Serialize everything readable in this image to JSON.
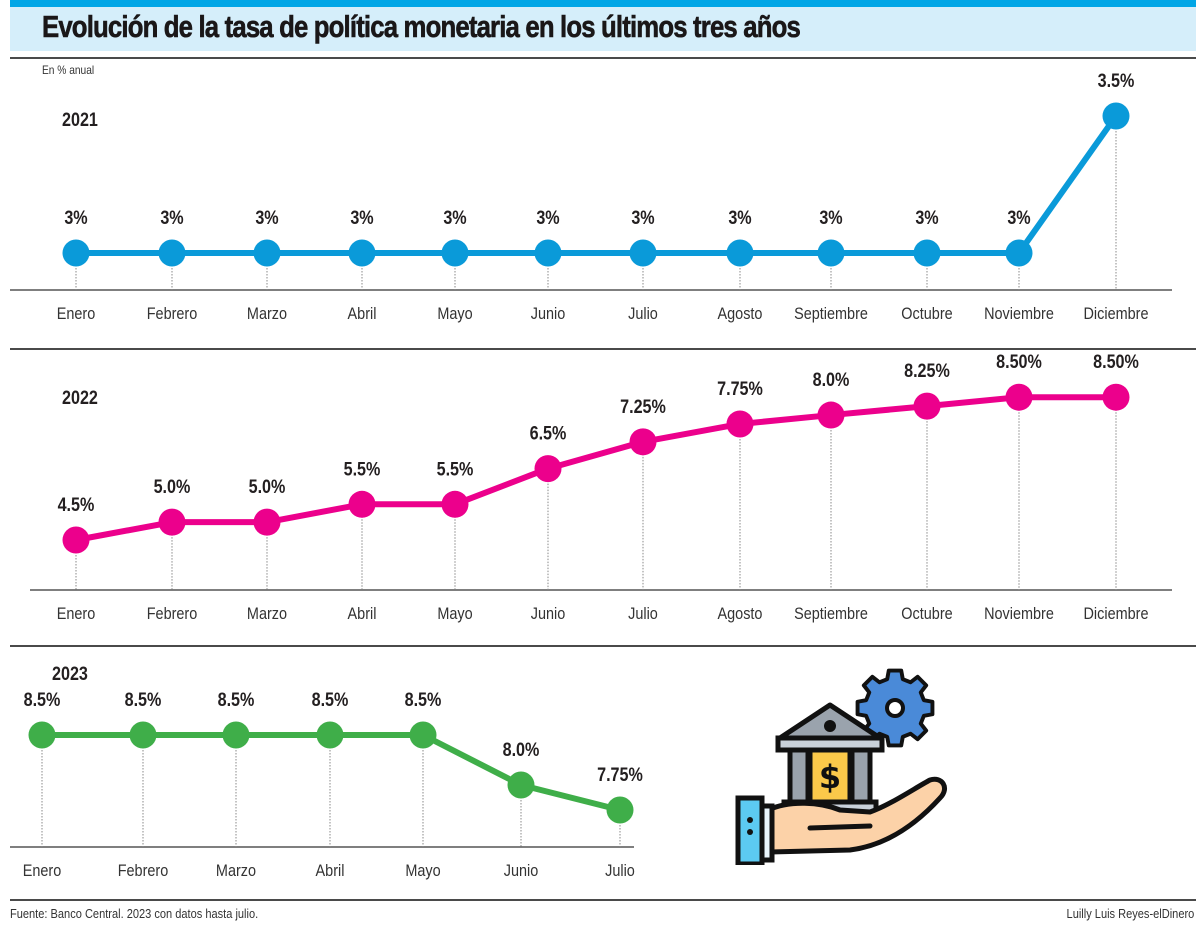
{
  "header": {
    "title": "Evolución de la tasa de política monetaria en los últimos tres años",
    "unit_label": "En % anual"
  },
  "colors": {
    "stripe": "#00a6e6",
    "title_band": "#d5eefa",
    "series_2021": "#0a9ad9",
    "series_2022": "#ec008c",
    "series_2023": "#3fae49"
  },
  "footer": {
    "source": "Fuente: Banco Central. 2023 con datos hasta julio.",
    "credit": "Luilly Luis Reyes-elDinero"
  },
  "illustration": {
    "icon": "bank-in-hand-with-gear-icon"
  },
  "chart_data": [
    {
      "type": "line",
      "title": "2021",
      "ylabel": "En % anual",
      "categories": [
        "Enero",
        "Febrero",
        "Marzo",
        "Abril",
        "Mayo",
        "Junio",
        "Julio",
        "Agosto",
        "Septiembre",
        "Octubre",
        "Noviembre",
        "Diciembre"
      ],
      "values": [
        3,
        3,
        3,
        3,
        3,
        3,
        3,
        3,
        3,
        3,
        3,
        3.5
      ],
      "labels": [
        "3%",
        "3%",
        "3%",
        "3%",
        "3%",
        "3%",
        "3%",
        "3%",
        "3%",
        "3%",
        "3%",
        "3.5%"
      ],
      "grid": false
    },
    {
      "type": "line",
      "title": "2022",
      "ylabel": "En % anual",
      "categories": [
        "Enero",
        "Febrero",
        "Marzo",
        "Abril",
        "Mayo",
        "Junio",
        "Julio",
        "Agosto",
        "Septiembre",
        "Octubre",
        "Noviembre",
        "Diciembre"
      ],
      "values": [
        4.5,
        5.0,
        5.0,
        5.5,
        5.5,
        6.5,
        7.25,
        7.75,
        8.0,
        8.25,
        8.5,
        8.5
      ],
      "labels": [
        "4.5%",
        "5.0%",
        "5.0%",
        "5.5%",
        "5.5%",
        "6.5%",
        "7.25%",
        "7.75%",
        "8.0%",
        "8.25%",
        "8.50%",
        "8.50%"
      ],
      "grid": false
    },
    {
      "type": "line",
      "title": "2023",
      "ylabel": "En % anual",
      "categories": [
        "Enero",
        "Febrero",
        "Marzo",
        "Abril",
        "Mayo",
        "Junio",
        "Julio"
      ],
      "values": [
        8.5,
        8.5,
        8.5,
        8.5,
        8.5,
        8.0,
        7.75
      ],
      "labels": [
        "8.5%",
        "8.5%",
        "8.5%",
        "8.5%",
        "8.5%",
        "8.0%",
        "7.75%"
      ],
      "grid": false
    }
  ]
}
